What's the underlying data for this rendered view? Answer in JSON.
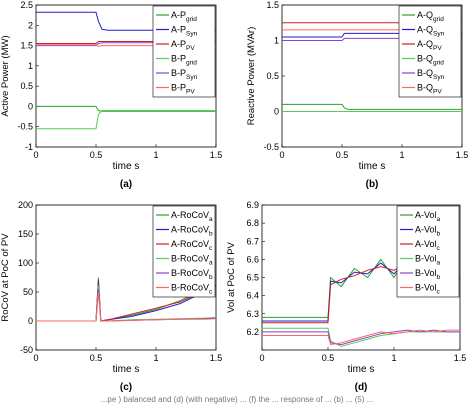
{
  "caption": "...pe ) balanced and (d) (with negative) ... (f) the ... response of ... (b) ... (5) ... ",
  "chart_data": [
    {
      "type": "line",
      "panel_label": "(a)",
      "xlabel": "time s",
      "ylabel": "Active Power (MW)",
      "xlim": [
        0,
        1.5
      ],
      "ylim": [
        -1,
        2.5
      ],
      "xticks": [
        0,
        0.5,
        1,
        1.5
      ],
      "yticks": [
        -1,
        -0.5,
        0,
        0.5,
        1,
        1.5,
        2,
        2.5
      ],
      "xtick_labels": [
        "0",
        "0.5",
        "1",
        "1.5"
      ],
      "ytick_labels": [
        "-1",
        "-0.5",
        "0",
        "0.5",
        "1",
        "1.5",
        "2",
        "2.5"
      ],
      "legend_position": "right",
      "grid": false,
      "series": [
        {
          "name": "A-P",
          "sub": "grid",
          "color": "#2ca02c",
          "x": [
            0,
            0.5,
            0.52,
            0.55,
            0.6,
            1.0,
            1.5
          ],
          "y": [
            0.0,
            0.0,
            -0.1,
            -0.12,
            -0.12,
            -0.12,
            -0.12
          ]
        },
        {
          "name": "A-P",
          "sub": "Syn",
          "color": "#1f1fcf",
          "x": [
            0,
            0.5,
            0.52,
            0.55,
            0.6,
            1.0,
            1.5
          ],
          "y": [
            2.32,
            2.32,
            2.1,
            1.9,
            1.88,
            1.88,
            1.88
          ]
        },
        {
          "name": "A-P",
          "sub": "PV",
          "color": "#cf1f1f",
          "x": [
            0,
            0.5,
            0.52,
            0.55,
            0.6,
            1.0,
            1.5
          ],
          "y": [
            1.55,
            1.55,
            1.6,
            1.6,
            1.6,
            1.6,
            1.6
          ]
        },
        {
          "name": "B-P",
          "sub": "grid",
          "color": "#55cc55",
          "x": [
            0,
            0.5,
            0.52,
            0.55,
            0.6,
            1.0,
            1.5
          ],
          "y": [
            -0.55,
            -0.55,
            -0.2,
            -0.1,
            -0.1,
            -0.1,
            -0.1
          ]
        },
        {
          "name": "B-P",
          "sub": "Syn",
          "color": "#8844cc",
          "x": [
            0,
            0.5,
            0.52,
            0.55,
            0.6,
            1.0,
            1.5
          ],
          "y": [
            1.5,
            1.5,
            1.55,
            1.57,
            1.57,
            1.57,
            1.57
          ]
        },
        {
          "name": "B-P",
          "sub": "PV",
          "color": "#ff6666",
          "x": [
            0,
            0.5,
            0.52,
            0.55,
            0.6,
            1.0,
            1.5
          ],
          "y": [
            1.52,
            1.52,
            1.48,
            1.5,
            1.5,
            1.5,
            1.5
          ]
        }
      ]
    },
    {
      "type": "line",
      "panel_label": "(b)",
      "xlabel": "time s",
      "ylabel": "Reactive Power (MVAr)",
      "xlim": [
        0,
        1.5
      ],
      "ylim": [
        -0.5,
        1.5
      ],
      "xticks": [
        0,
        0.5,
        1,
        1.5
      ],
      "yticks": [
        -0.5,
        0,
        0.5,
        1,
        1.5
      ],
      "xtick_labels": [
        "0",
        "0.5",
        "1",
        "1.5"
      ],
      "ytick_labels": [
        "-0.5",
        "0",
        "0.5",
        "1",
        "1.5"
      ],
      "legend_position": "right",
      "grid": false,
      "series": [
        {
          "name": "A-Q",
          "sub": "grid",
          "color": "#2ca02c",
          "x": [
            0,
            0.5,
            0.52,
            0.55,
            1.0,
            1.5
          ],
          "y": [
            0.1,
            0.1,
            0.05,
            0.03,
            0.03,
            0.03
          ]
        },
        {
          "name": "A-Q",
          "sub": "Syn",
          "color": "#1f1fcf",
          "x": [
            0,
            0.5,
            0.52,
            0.55,
            1.0,
            1.5
          ],
          "y": [
            1.05,
            1.05,
            1.1,
            1.1,
            1.1,
            1.1
          ]
        },
        {
          "name": "A-Q",
          "sub": "PV",
          "color": "#cf1f1f",
          "x": [
            0,
            0.5,
            0.52,
            0.55,
            1.0,
            1.5
          ],
          "y": [
            1.25,
            1.25,
            1.25,
            1.25,
            1.25,
            1.25
          ]
        },
        {
          "name": "B-Q",
          "sub": "grid",
          "color": "#55cc55",
          "x": [
            0,
            0.5,
            0.52,
            0.55,
            1.0,
            1.5
          ],
          "y": [
            0.0,
            0.0,
            0.0,
            0.0,
            0.0,
            0.0
          ]
        },
        {
          "name": "B-Q",
          "sub": "Syn",
          "color": "#8844cc",
          "x": [
            0,
            0.5,
            0.52,
            0.55,
            1.0,
            1.5
          ],
          "y": [
            1.0,
            1.0,
            1.03,
            1.03,
            1.03,
            1.03
          ]
        },
        {
          "name": "B-Q",
          "sub": "PV",
          "color": "#ff6666",
          "x": [
            0,
            0.5,
            0.52,
            0.55,
            1.0,
            1.5
          ],
          "y": [
            1.15,
            1.15,
            1.15,
            1.15,
            1.15,
            1.15
          ]
        }
      ]
    },
    {
      "type": "line",
      "panel_label": "(c)",
      "xlabel": "time s",
      "ylabel": "RoCoV at PoC of PV",
      "xlim": [
        0,
        1.5
      ],
      "ylim": [
        -50,
        200
      ],
      "xticks": [
        0,
        0.5,
        1,
        1.5
      ],
      "yticks": [
        -50,
        0,
        50,
        100,
        150,
        200
      ],
      "xtick_labels": [
        "0",
        "0.5",
        "1",
        "1.5"
      ],
      "ytick_labels": [
        "-50",
        "0",
        "50",
        "100",
        "150",
        "200"
      ],
      "legend_position": "top-right",
      "grid": false,
      "series": [
        {
          "name": "A-RoCoV",
          "sub": "a",
          "color": "#2ca02c",
          "x": [
            0,
            0.5,
            0.52,
            0.54,
            0.6,
            0.8,
            1.0,
            1.2,
            1.4,
            1.5
          ],
          "y": [
            0,
            0,
            75,
            0,
            2,
            10,
            20,
            35,
            55,
            65
          ]
        },
        {
          "name": "A-RoCoV",
          "sub": "b",
          "color": "#1f1fcf",
          "x": [
            0,
            0.5,
            0.52,
            0.54,
            0.6,
            0.8,
            1.0,
            1.2,
            1.4,
            1.5
          ],
          "y": [
            0,
            0,
            70,
            0,
            2,
            8,
            18,
            30,
            50,
            62
          ]
        },
        {
          "name": "A-RoCoV",
          "sub": "c",
          "color": "#cf1f1f",
          "x": [
            0,
            0.5,
            0.52,
            0.54,
            0.6,
            0.8,
            1.0,
            1.2,
            1.4,
            1.5
          ],
          "y": [
            0,
            0,
            65,
            0,
            2,
            12,
            22,
            33,
            52,
            60
          ]
        },
        {
          "name": "B-RoCoV",
          "sub": "a",
          "color": "#55cc55",
          "x": [
            0,
            0.5,
            0.52,
            0.54,
            0.6,
            0.8,
            1.0,
            1.2,
            1.4,
            1.5
          ],
          "y": [
            0,
            0,
            60,
            0,
            0,
            2,
            3,
            4,
            5,
            6
          ]
        },
        {
          "name": "B-RoCoV",
          "sub": "b",
          "color": "#8844cc",
          "x": [
            0,
            0.5,
            0.52,
            0.54,
            0.6,
            0.8,
            1.0,
            1.2,
            1.4,
            1.5
          ],
          "y": [
            0,
            0,
            55,
            0,
            0,
            1,
            2,
            3,
            4,
            5
          ]
        },
        {
          "name": "B-RoCoV",
          "sub": "c",
          "color": "#ff6666",
          "x": [
            0,
            0.5,
            0.52,
            0.54,
            0.6,
            0.8,
            1.0,
            1.2,
            1.4,
            1.5
          ],
          "y": [
            0,
            0,
            50,
            0,
            0,
            1,
            2,
            3,
            3,
            4
          ]
        }
      ]
    },
    {
      "type": "line",
      "panel_label": "(d)",
      "xlabel": "time s",
      "ylabel": "Vol at PoC of PV",
      "xlim": [
        0,
        1.5
      ],
      "ylim": [
        6.1,
        6.9
      ],
      "xticks": [
        0,
        0.5,
        1,
        1.5
      ],
      "yticks": [
        6.1,
        6.2,
        6.3,
        6.4,
        6.5,
        6.6,
        6.7,
        6.8,
        6.9
      ],
      "xtick_labels": [
        "0",
        "0.5",
        "1",
        "1.5"
      ],
      "ytick_labels": [
        "",
        "6.2",
        "6.3",
        "6.4",
        "6.5",
        "6.6",
        "6.7",
        "6.8",
        "6.9"
      ],
      "legend_position": "top-right",
      "grid": false,
      "series": [
        {
          "name": "A-Vol",
          "sub": "a",
          "color": "#2ca02c",
          "x": [
            0,
            0.5,
            0.52,
            0.6,
            0.7,
            0.8,
            0.9,
            1.0,
            1.1,
            1.2,
            1.3,
            1.4,
            1.5
          ],
          "y": [
            6.28,
            6.28,
            6.5,
            6.45,
            6.55,
            6.5,
            6.6,
            6.5,
            6.62,
            6.5,
            6.55,
            6.48,
            6.52
          ]
        },
        {
          "name": "A-Vol",
          "sub": "b",
          "color": "#1f1fcf",
          "x": [
            0,
            0.5,
            0.52,
            0.6,
            0.7,
            0.8,
            0.9,
            1.0,
            1.1,
            1.2,
            1.3,
            1.4,
            1.5
          ],
          "y": [
            6.26,
            6.26,
            6.48,
            6.47,
            6.53,
            6.52,
            6.58,
            6.52,
            6.6,
            6.52,
            6.53,
            6.5,
            6.5
          ]
        },
        {
          "name": "A-Vol",
          "sub": "c",
          "color": "#cf1f1f",
          "x": [
            0,
            0.5,
            0.52,
            0.6,
            0.7,
            0.8,
            0.9,
            1.0,
            1.1,
            1.2,
            1.3,
            1.4,
            1.5
          ],
          "y": [
            6.25,
            6.25,
            6.46,
            6.49,
            6.51,
            6.54,
            6.56,
            6.54,
            6.58,
            6.54,
            6.51,
            6.52,
            6.49
          ]
        },
        {
          "name": "B-Vol",
          "sub": "a",
          "color": "#55cc55",
          "x": [
            0,
            0.5,
            0.52,
            0.6,
            0.7,
            0.8,
            0.9,
            1.0,
            1.1,
            1.2,
            1.3,
            1.4,
            1.5
          ],
          "y": [
            6.22,
            6.22,
            6.15,
            6.12,
            6.14,
            6.16,
            6.18,
            6.19,
            6.2,
            6.2,
            6.2,
            6.2,
            6.2
          ]
        },
        {
          "name": "B-Vol",
          "sub": "b",
          "color": "#8844cc",
          "x": [
            0,
            0.5,
            0.52,
            0.6,
            0.7,
            0.8,
            0.9,
            1.0,
            1.1,
            1.2,
            1.3,
            1.4,
            1.5
          ],
          "y": [
            6.2,
            6.2,
            6.14,
            6.13,
            6.15,
            6.17,
            6.19,
            6.2,
            6.21,
            6.2,
            6.21,
            6.2,
            6.2
          ]
        },
        {
          "name": "B-Vol",
          "sub": "c",
          "color": "#ff6666",
          "x": [
            0,
            0.5,
            0.52,
            0.6,
            0.7,
            0.8,
            0.9,
            1.0,
            1.1,
            1.2,
            1.3,
            1.4,
            1.5
          ],
          "y": [
            6.18,
            6.18,
            6.13,
            6.14,
            6.16,
            6.18,
            6.2,
            6.19,
            6.2,
            6.21,
            6.2,
            6.21,
            6.21
          ]
        }
      ]
    }
  ]
}
